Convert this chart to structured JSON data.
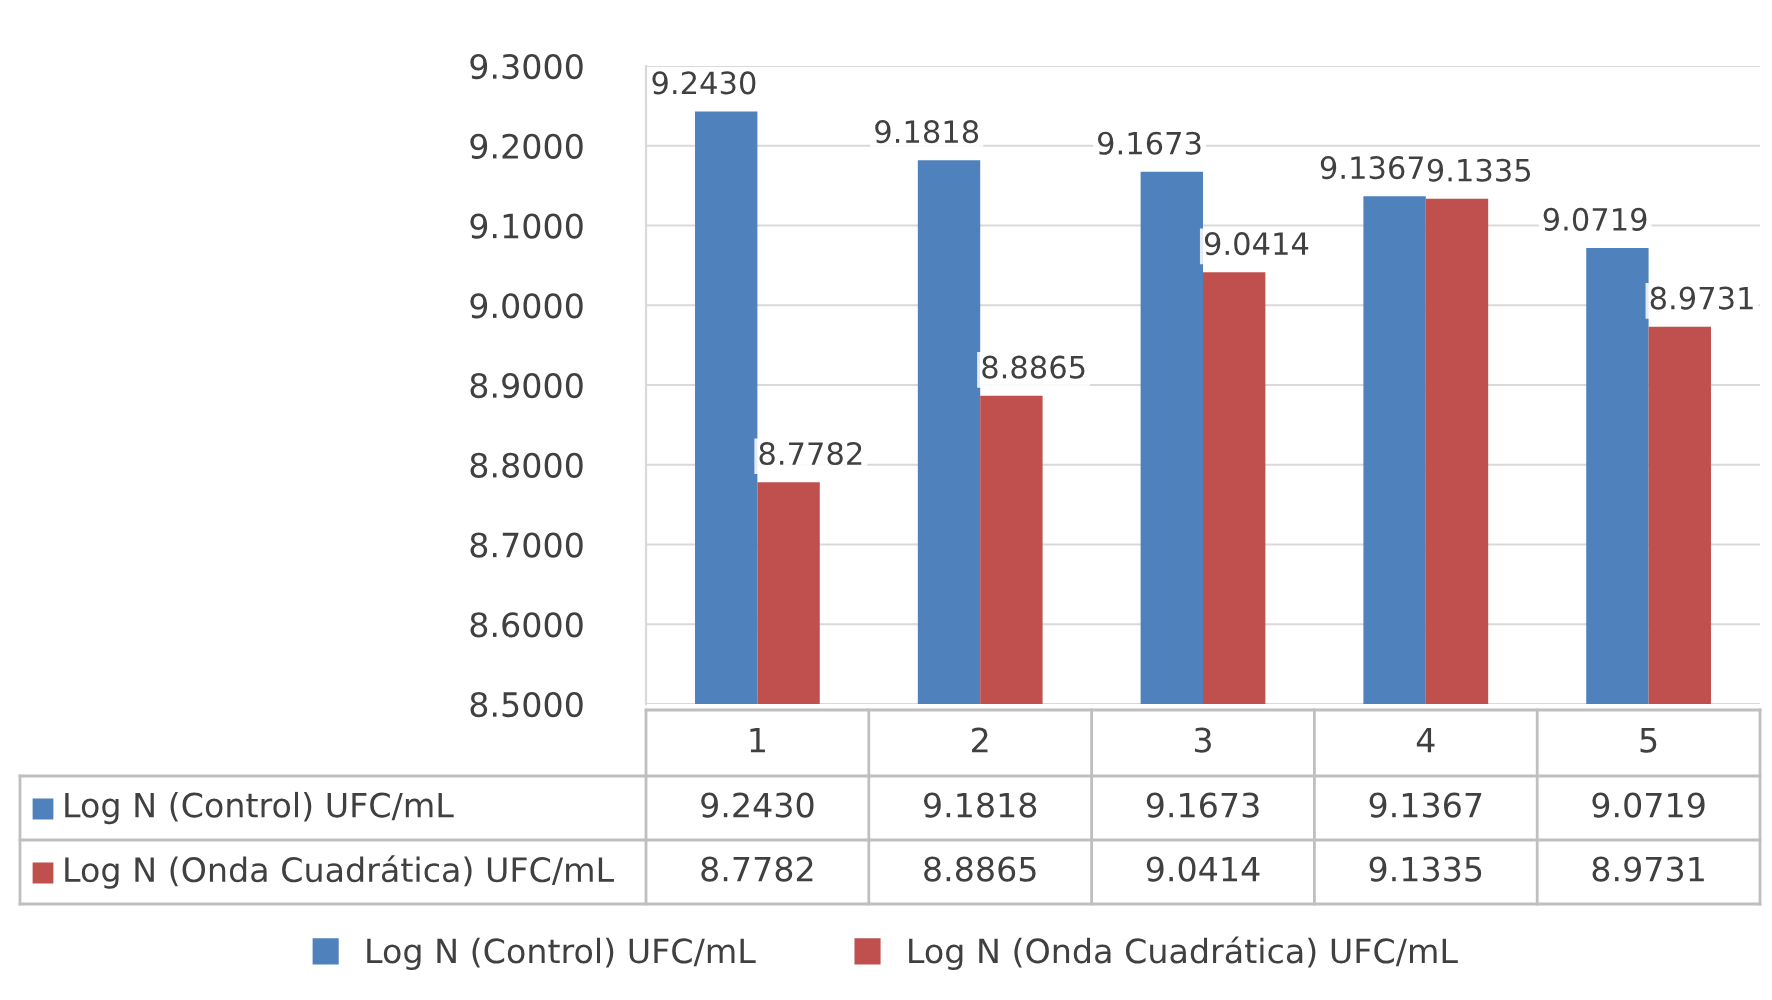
{
  "chart_data": {
    "type": "bar",
    "categories": [
      "1",
      "2",
      "3",
      "4",
      "5"
    ],
    "series": [
      {
        "name": "Log N (Control) UFC/mL",
        "color": "#4f81bd",
        "values": [
          9.243,
          9.1818,
          9.1673,
          9.1367,
          9.0719
        ],
        "value_labels": [
          "9.2430",
          "9.1818",
          "9.1673",
          "9.1367",
          "9.0719"
        ]
      },
      {
        "name": "Log N (Onda Cuadrática) UFC/mL",
        "color": "#c0504d",
        "values": [
          8.7782,
          8.8865,
          9.0414,
          9.1335,
          8.9731
        ],
        "value_labels": [
          "8.7782",
          "8.8865",
          "9.0414",
          "9.1335",
          "8.9731"
        ]
      }
    ],
    "ylim": [
      8.5,
      9.3
    ],
    "yticks": [
      {
        "value": 8.5,
        "label": "8.5000"
      },
      {
        "value": 8.6,
        "label": "8.6000"
      },
      {
        "value": 8.7,
        "label": "8.7000"
      },
      {
        "value": 8.8,
        "label": "8.8000"
      },
      {
        "value": 8.9,
        "label": "8.9000"
      },
      {
        "value": 9.0,
        "label": "9.0000"
      },
      {
        "value": 9.1,
        "label": "9.1000"
      },
      {
        "value": 9.2,
        "label": "9.2000"
      },
      {
        "value": 9.3,
        "label": "9.3000"
      }
    ],
    "grid": "y",
    "legend": "bottom"
  }
}
